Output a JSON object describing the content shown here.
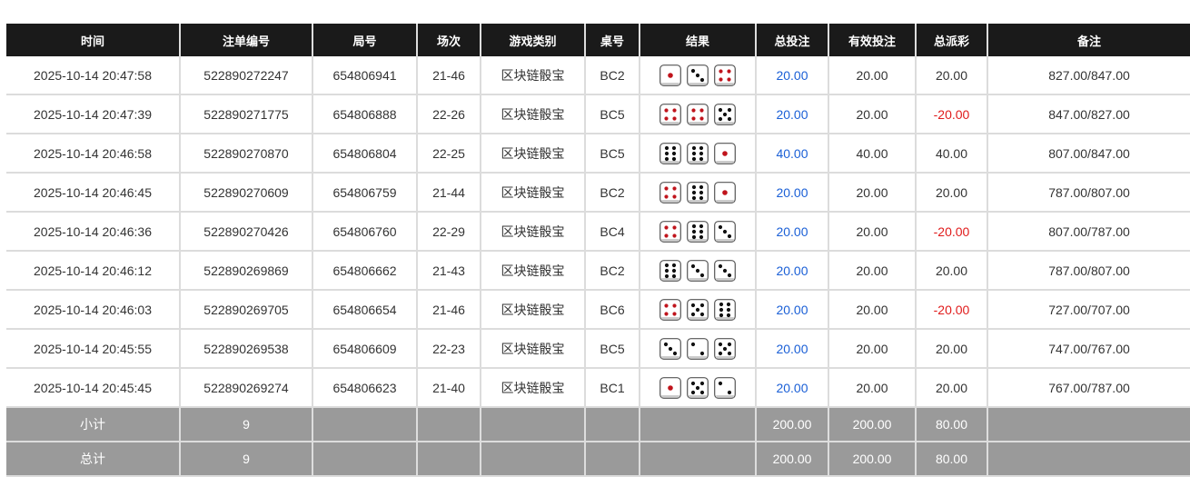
{
  "columns": [
    "时间",
    "注单编号",
    "局号",
    "场次",
    "游戏类别",
    "桌号",
    "结果",
    "总投注",
    "有效投注",
    "总派彩",
    "备注"
  ],
  "rows": [
    {
      "time": "2025-10-14 20:47:58",
      "bet_id": "522890272247",
      "round": "654806941",
      "session": "21-46",
      "game": "区块链骰宝",
      "table": "BC2",
      "dice": [
        1,
        3,
        4
      ],
      "total_bet": "20.00",
      "valid_bet": "20.00",
      "payout": "20.00",
      "note": "827.00/847.00"
    },
    {
      "time": "2025-10-14 20:47:39",
      "bet_id": "522890271775",
      "round": "654806888",
      "session": "22-26",
      "game": "区块链骰宝",
      "table": "BC5",
      "dice": [
        4,
        4,
        5
      ],
      "total_bet": "20.00",
      "valid_bet": "20.00",
      "payout": "-20.00",
      "note": "847.00/827.00"
    },
    {
      "time": "2025-10-14 20:46:58",
      "bet_id": "522890270870",
      "round": "654806804",
      "session": "22-25",
      "game": "区块链骰宝",
      "table": "BC5",
      "dice": [
        6,
        6,
        1
      ],
      "total_bet": "40.00",
      "valid_bet": "40.00",
      "payout": "40.00",
      "note": "807.00/847.00"
    },
    {
      "time": "2025-10-14 20:46:45",
      "bet_id": "522890270609",
      "round": "654806759",
      "session": "21-44",
      "game": "区块链骰宝",
      "table": "BC2",
      "dice": [
        4,
        6,
        1
      ],
      "total_bet": "20.00",
      "valid_bet": "20.00",
      "payout": "20.00",
      "note": "787.00/807.00"
    },
    {
      "time": "2025-10-14 20:46:36",
      "bet_id": "522890270426",
      "round": "654806760",
      "session": "22-29",
      "game": "区块链骰宝",
      "table": "BC4",
      "dice": [
        4,
        6,
        3
      ],
      "total_bet": "20.00",
      "valid_bet": "20.00",
      "payout": "-20.00",
      "note": "807.00/787.00"
    },
    {
      "time": "2025-10-14 20:46:12",
      "bet_id": "522890269869",
      "round": "654806662",
      "session": "21-43",
      "game": "区块链骰宝",
      "table": "BC2",
      "dice": [
        6,
        3,
        3
      ],
      "total_bet": "20.00",
      "valid_bet": "20.00",
      "payout": "20.00",
      "note": "787.00/807.00"
    },
    {
      "time": "2025-10-14 20:46:03",
      "bet_id": "522890269705",
      "round": "654806654",
      "session": "21-46",
      "game": "区块链骰宝",
      "table": "BC6",
      "dice": [
        4,
        5,
        6
      ],
      "total_bet": "20.00",
      "valid_bet": "20.00",
      "payout": "-20.00",
      "note": "727.00/707.00"
    },
    {
      "time": "2025-10-14 20:45:55",
      "bet_id": "522890269538",
      "round": "654806609",
      "session": "22-23",
      "game": "区块链骰宝",
      "table": "BC5",
      "dice": [
        3,
        2,
        5
      ],
      "total_bet": "20.00",
      "valid_bet": "20.00",
      "payout": "20.00",
      "note": "747.00/767.00"
    },
    {
      "time": "2025-10-14 20:45:45",
      "bet_id": "522890269274",
      "round": "654806623",
      "session": "21-40",
      "game": "区块链骰宝",
      "table": "BC1",
      "dice": [
        1,
        5,
        2
      ],
      "total_bet": "20.00",
      "valid_bet": "20.00",
      "payout": "20.00",
      "note": "767.00/787.00"
    }
  ],
  "subtotal": {
    "label": "小计",
    "count": "9",
    "total_bet": "200.00",
    "valid_bet": "200.00",
    "payout": "80.00"
  },
  "total": {
    "label": "总计",
    "count": "9",
    "total_bet": "200.00",
    "valid_bet": "200.00",
    "payout": "80.00"
  },
  "colors": {
    "bet_blue": "#1a5fd6",
    "negative_red": "#e01b1b",
    "header_bg": "#1a1a1a",
    "summary_bg": "#9a9a9a",
    "red_pip": "#c0141c",
    "black_pip": "#111111"
  }
}
